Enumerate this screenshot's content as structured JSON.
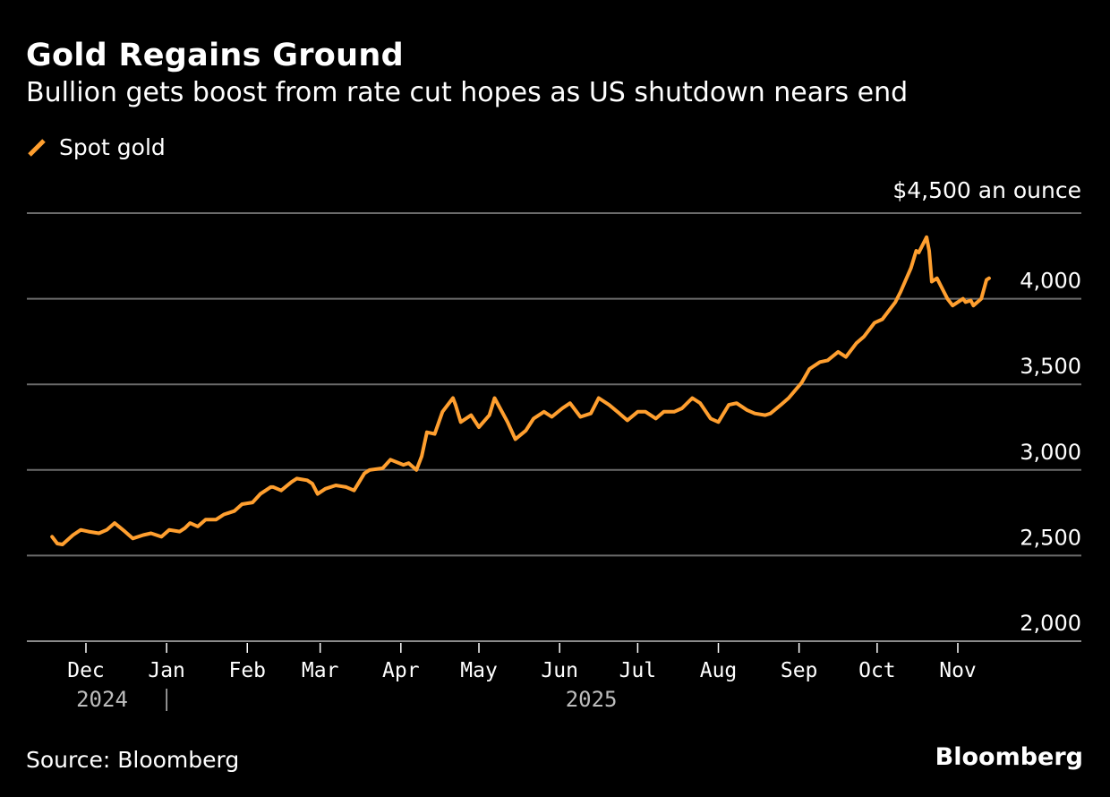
{
  "header": {
    "title": "Gold Regains Ground",
    "subtitle": "Bullion gets boost from rate cut hopes as US shutdown nears end"
  },
  "legend": {
    "items": [
      {
        "label": "Spot gold",
        "color": "#ff9f2f"
      }
    ]
  },
  "footer": {
    "source": "Source: Bloomberg",
    "brand": "Bloomberg"
  },
  "chart_data": {
    "type": "line",
    "title": "Gold Regains Ground",
    "subtitle": "Bullion gets boost from rate cut hopes as US shutdown nears end",
    "xlabel": "",
    "ylabel": "",
    "unit_label": "$4,500 an ounce",
    "ylim": [
      2000,
      4500
    ],
    "yticks": [
      2000,
      2500,
      3000,
      3500,
      4000,
      4500
    ],
    "ytick_labels": [
      "2,000",
      "2,500",
      "3,000",
      "3,500",
      "4,000",
      "$4,500 an ounce"
    ],
    "xlim": [
      "2024-11-14",
      "2025-11-30"
    ],
    "xticks": [
      "2024-12-01",
      "2025-01-01",
      "2025-02-01",
      "2025-03-01",
      "2025-04-01",
      "2025-05-01",
      "2025-06-01",
      "2025-07-01",
      "2025-08-01",
      "2025-09-01",
      "2025-10-01",
      "2025-11-01"
    ],
    "xtick_labels": [
      "Dec",
      "Jan",
      "Feb",
      "Mar",
      "Apr",
      "May",
      "Jun",
      "Jul",
      "Aug",
      "Sep",
      "Oct",
      "Nov"
    ],
    "year_labels": [
      {
        "label": "2024",
        "at": "2024-12-01"
      },
      {
        "label": "2025",
        "at": "2025-06-07"
      }
    ],
    "year_divider_at": "2025-01-01",
    "grid": true,
    "legend": "top-left",
    "series": [
      {
        "name": "Spot gold",
        "color": "#ff9f2f",
        "x": [
          "2024-11-18",
          "2024-11-20",
          "2024-11-22",
          "2024-11-26",
          "2024-11-29",
          "2024-12-02",
          "2024-12-06",
          "2024-12-09",
          "2024-12-12",
          "2024-12-16",
          "2024-12-19",
          "2024-12-23",
          "2024-12-26",
          "2024-12-30",
          "2025-01-02",
          "2025-01-06",
          "2025-01-08",
          "2025-01-10",
          "2025-01-13",
          "2025-01-16",
          "2025-01-20",
          "2025-01-23",
          "2025-01-27",
          "2025-01-30",
          "2025-02-03",
          "2025-02-06",
          "2025-02-10",
          "2025-02-11",
          "2025-02-14",
          "2025-02-18",
          "2025-02-20",
          "2025-02-24",
          "2025-02-26",
          "2025-02-28",
          "2025-03-03",
          "2025-03-07",
          "2025-03-11",
          "2025-03-14",
          "2025-03-18",
          "2025-03-20",
          "2025-03-25",
          "2025-03-28",
          "2025-04-02",
          "2025-04-04",
          "2025-04-07",
          "2025-04-09",
          "2025-04-11",
          "2025-04-14",
          "2025-04-17",
          "2025-04-21",
          "2025-04-22",
          "2025-04-24",
          "2025-04-28",
          "2025-05-01",
          "2025-05-05",
          "2025-05-07",
          "2025-05-12",
          "2025-05-15",
          "2025-05-19",
          "2025-05-22",
          "2025-05-26",
          "2025-05-29",
          "2025-06-02",
          "2025-06-05",
          "2025-06-09",
          "2025-06-13",
          "2025-06-16",
          "2025-06-20",
          "2025-06-24",
          "2025-06-27",
          "2025-07-01",
          "2025-07-04",
          "2025-07-08",
          "2025-07-11",
          "2025-07-15",
          "2025-07-18",
          "2025-07-22",
          "2025-07-25",
          "2025-07-29",
          "2025-08-01",
          "2025-08-05",
          "2025-08-08",
          "2025-08-12",
          "2025-08-15",
          "2025-08-19",
          "2025-08-21",
          "2025-08-25",
          "2025-08-28",
          "2025-09-02",
          "2025-09-05",
          "2025-09-09",
          "2025-09-12",
          "2025-09-16",
          "2025-09-19",
          "2025-09-23",
          "2025-09-26",
          "2025-09-30",
          "2025-10-03",
          "2025-10-08",
          "2025-10-10",
          "2025-10-14",
          "2025-10-16",
          "2025-10-17",
          "2025-10-20",
          "2025-10-21",
          "2025-10-22",
          "2025-10-24",
          "2025-10-28",
          "2025-10-30",
          "2025-11-03",
          "2025-11-04",
          "2025-11-06",
          "2025-11-07",
          "2025-11-10",
          "2025-11-12",
          "2025-11-13"
        ],
        "values": [
          2610,
          2570,
          2565,
          2620,
          2650,
          2640,
          2630,
          2650,
          2690,
          2640,
          2600,
          2620,
          2630,
          2610,
          2650,
          2640,
          2660,
          2690,
          2670,
          2710,
          2710,
          2740,
          2760,
          2800,
          2810,
          2860,
          2900,
          2900,
          2880,
          2930,
          2950,
          2940,
          2920,
          2860,
          2890,
          2910,
          2900,
          2880,
          2980,
          3000,
          3010,
          3060,
          3030,
          3040,
          3000,
          3080,
          3220,
          3210,
          3340,
          3420,
          3380,
          3280,
          3320,
          3250,
          3320,
          3420,
          3280,
          3180,
          3230,
          3300,
          3340,
          3310,
          3360,
          3390,
          3310,
          3330,
          3420,
          3380,
          3330,
          3290,
          3340,
          3340,
          3300,
          3340,
          3340,
          3360,
          3420,
          3390,
          3300,
          3280,
          3380,
          3390,
          3350,
          3330,
          3320,
          3330,
          3380,
          3420,
          3510,
          3590,
          3630,
          3640,
          3690,
          3660,
          3740,
          3780,
          3860,
          3880,
          3980,
          4040,
          4180,
          4280,
          4270,
          4360,
          4280,
          4100,
          4120,
          4000,
          3960,
          4000,
          3980,
          3990,
          3960,
          4000,
          4110,
          4120
        ]
      }
    ]
  }
}
